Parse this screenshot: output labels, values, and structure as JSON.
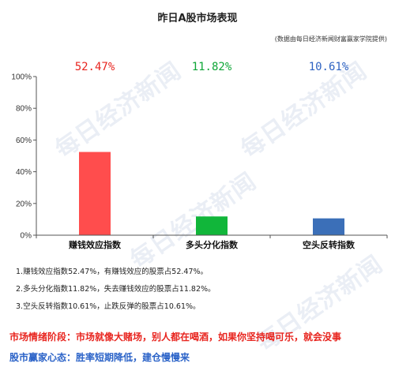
{
  "header": {
    "title": "昨日A股市场表现",
    "source": "(数据由每日经济新闻财富赢家学院提供)"
  },
  "watermark_text": "每日经济新闻",
  "chart_data": {
    "type": "bar",
    "categories": [
      "赚钱效应指数",
      "多头分化指数",
      "空头反转指数"
    ],
    "values": [
      52.47,
      11.82,
      10.61
    ],
    "value_labels": [
      "52.47%",
      "11.82%",
      "10.61%"
    ],
    "colors": [
      "#ff4d4d",
      "#11b63a",
      "#3b6fb8"
    ],
    "label_colors": [
      "#e8251f",
      "#0ea637",
      "#2e63c2"
    ],
    "ylim": [
      0,
      100
    ],
    "yticks": [
      0,
      20,
      40,
      60,
      80,
      100
    ],
    "ytick_labels": [
      "0%",
      "20%",
      "40%",
      "60%",
      "80%",
      "100%"
    ],
    "grid": false,
    "title": "昨日A股市场表现",
    "xlabel": "",
    "ylabel": ""
  },
  "notes": [
    "1.赚钱效应指数52.47%，有赚钱效应的股票占52.47%。",
    "2.多头分化指数11.82%，失去赚钱效应的股票占11.82%。",
    "3.空头反转指数10.61%，止跌反弹的股票占10.61%。"
  ],
  "market_stage": "市场情绪阶段：市场就像大赌场，别人都在喝酒，如果你坚持喝可乐，就会没事",
  "investor_mood": "股市赢家心态：胜率短期降低，建仓慢慢来"
}
